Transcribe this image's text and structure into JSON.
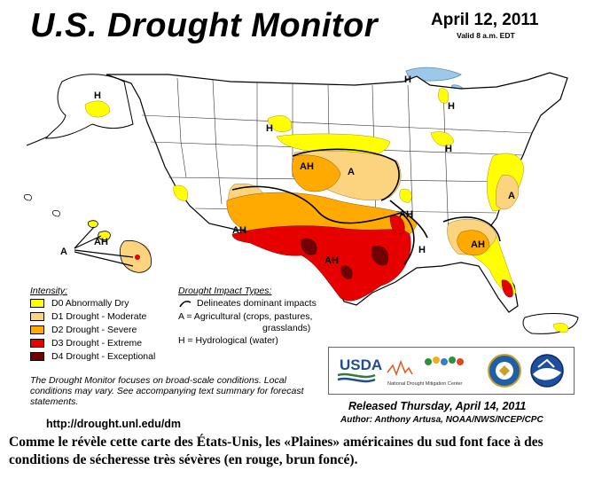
{
  "header": {
    "title": "U.S. Drought Monitor",
    "date": "April 12, 2011",
    "valid": "Valid 8 a.m. EDT"
  },
  "colors": {
    "D0": "#ffff00",
    "D1": "#fcd37f",
    "D2": "#ffaa00",
    "D3": "#e60000",
    "D4": "#730000",
    "water": "#9dc8e8"
  },
  "map_labels": [
    "H",
    "H",
    "H",
    "H",
    "H",
    "AH",
    "A",
    "A",
    "AH",
    "AH",
    "AH",
    "H",
    "AH",
    "AH",
    "A"
  ],
  "legend": {
    "intensity_title": "Intensity:",
    "levels": [
      {
        "code": "D0",
        "label": "D0 Abnormally Dry"
      },
      {
        "code": "D1",
        "label": "D1 Drought - Moderate"
      },
      {
        "code": "D2",
        "label": "D2 Drought - Severe"
      },
      {
        "code": "D3",
        "label": "D3 Drought - Extreme"
      },
      {
        "code": "D4",
        "label": "D4 Drought - Exceptional"
      }
    ],
    "impact_title": "Drought Impact Types:",
    "impacts": [
      "Delineates dominant impacts",
      "A = Agricultural (crops, pastures,",
      "grasslands)",
      "H = Hydrological (water)"
    ]
  },
  "note": "The Drought Monitor focuses on broad-scale conditions. Local conditions may vary. See accompanying text summary for forecast statements.",
  "url": "http://drought.unl.edu/dm",
  "released": "Released Thursday, April 14, 2011",
  "author": "Author: Anthony Artusa, NOAA/NWS/NCEP/CPC",
  "logos": {
    "usda": "USDA",
    "ndmc": "National Drought Mitigation Center"
  },
  "caption": "Comme le révèle cette carte des États-Unis, les «Plaines» américaines du sud font face à des conditions de sécheresse très sévères (en rouge, brun foncé)."
}
